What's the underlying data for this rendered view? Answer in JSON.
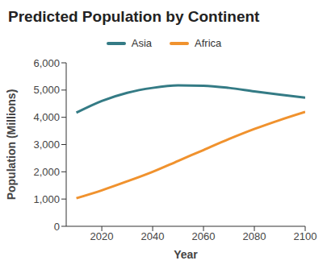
{
  "chart_data": {
    "type": "line",
    "title": "Predicted Population by Continent",
    "x_label": "Year",
    "y_label": "Population (Millions)",
    "x": [
      2010,
      2020,
      2030,
      2040,
      2050,
      2060,
      2070,
      2080,
      2090,
      2100
    ],
    "series": [
      {
        "name": "Asia",
        "color": "#347b85",
        "values": [
          4170,
          4600,
          4900,
          5080,
          5170,
          5160,
          5080,
          4950,
          4830,
          4720
        ]
      },
      {
        "name": "Africa",
        "color": "#f0922e",
        "values": [
          1030,
          1320,
          1650,
          2000,
          2400,
          2800,
          3200,
          3570,
          3900,
          4200
        ]
      }
    ],
    "xlim": [
      2006,
      2100
    ],
    "xticks": [
      2020,
      2040,
      2060,
      2080,
      2100
    ],
    "ylim": [
      0,
      6000
    ],
    "yticks": [
      0,
      {
        "value": 1000,
        "label": "1,000"
      },
      {
        "value": 2000,
        "label": "2,000"
      },
      {
        "value": 3000,
        "label": "3,000"
      },
      {
        "value": 4000,
        "label": "4,000"
      },
      {
        "value": 5000,
        "label": "5,000"
      },
      {
        "value": 6000,
        "label": "6,000"
      }
    ],
    "grid": false,
    "legend": "top"
  }
}
